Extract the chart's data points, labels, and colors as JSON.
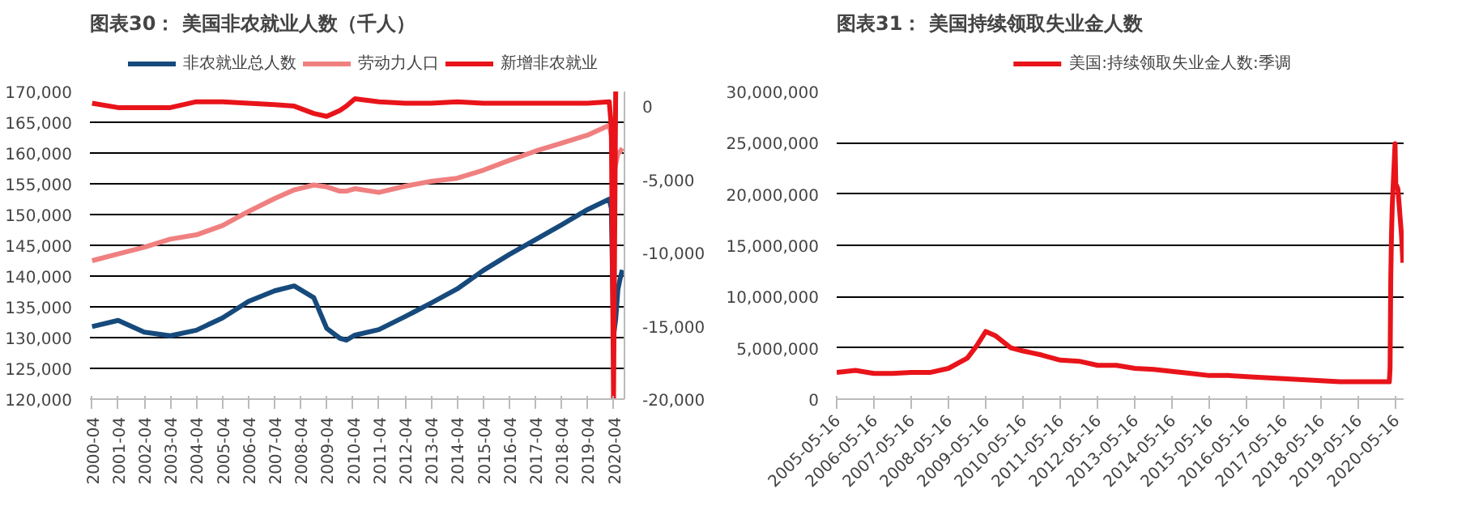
{
  "chart_data": [
    {
      "type": "line",
      "title": "图表30： 美国非农就业人数（千人）",
      "legend": "top",
      "grid": "y",
      "x": [
        "2000-04",
        "2001-04",
        "2002-04",
        "2003-04",
        "2004-04",
        "2005-04",
        "2006-04",
        "2007-04",
        "2008-01",
        "2008-10",
        "2009-04",
        "2009-10",
        "2010-01",
        "2010-05",
        "2011-04",
        "2012-04",
        "2013-04",
        "2014-04",
        "2015-04",
        "2016-04",
        "2017-04",
        "2018-04",
        "2019-04",
        "2020-02",
        "2020-03",
        "2020-04",
        "2020-05",
        "2020-06",
        "2020-07",
        "2020-08"
      ],
      "xlim": [
        "2000-03",
        "2020-09"
      ],
      "xticks": [
        "2000-04",
        "2001-04",
        "2002-04",
        "2003-04",
        "2004-04",
        "2005-04",
        "2006-04",
        "2007-04",
        "2008-04",
        "2009-04",
        "2010-04",
        "2011-04",
        "2012-04",
        "2013-04",
        "2014-04",
        "2015-04",
        "2016-04",
        "2017-04",
        "2018-04",
        "2019-04",
        "2020-04"
      ],
      "ylim": [
        120000,
        170000
      ],
      "yticks": [
        {
          "value": 120000,
          "label": "120,000"
        },
        {
          "value": 125000,
          "label": "125,000"
        },
        {
          "value": 130000,
          "label": "130,000"
        },
        {
          "value": 135000,
          "label": "135,000"
        },
        {
          "value": 140000,
          "label": "140,000"
        },
        {
          "value": 145000,
          "label": "145,000"
        },
        {
          "value": 150000,
          "label": "150,000"
        },
        {
          "value": 155000,
          "label": "155,000"
        },
        {
          "value": 160000,
          "label": "160,000"
        },
        {
          "value": 165000,
          "label": "165,000"
        },
        {
          "value": 170000,
          "label": "170,000"
        }
      ],
      "y2lim": [
        -20000,
        1000
      ],
      "y2ticks": [
        {
          "value": -20000,
          "label": "-20,000"
        },
        {
          "value": -15000,
          "label": "-15,000"
        },
        {
          "value": -10000,
          "label": "-10,000"
        },
        {
          "value": -5000,
          "label": "-5,000"
        },
        0
      ],
      "series": [
        {
          "name": "非农就业总人数",
          "color": "#174a7c",
          "values": [
            131800,
            132800,
            130900,
            130300,
            131200,
            133200,
            135900,
            137600,
            138400,
            136500,
            131500,
            129900,
            129600,
            130400,
            131300,
            133400,
            135600,
            137900,
            140900,
            143500,
            145900,
            148300,
            150800,
            152500,
            151000,
            130300,
            133000,
            137800,
            139500,
            141000
          ]
        },
        {
          "name": "劳动力人口",
          "color": "#f08080",
          "values": [
            142500,
            143600,
            144700,
            146000,
            146700,
            148200,
            150500,
            152600,
            154000,
            154800,
            154500,
            153800,
            153800,
            154200,
            153600,
            154600,
            155400,
            155900,
            157200,
            158800,
            160300,
            161600,
            162900,
            164500,
            162900,
            156500,
            158200,
            159900,
            160200,
            160800
          ]
        },
        {
          "name": "新增非农就业",
          "color": "#e8141a",
          "axis": "y2",
          "values": [
            200,
            -100,
            -100,
            -100,
            300,
            300,
            200,
            100,
            0,
            -500,
            -700,
            -300,
            0,
            500,
            300,
            200,
            200,
            300,
            200,
            200,
            200,
            200,
            200,
            300,
            -1400,
            -20000,
            1000,
            null,
            null,
            null
          ]
        }
      ]
    },
    {
      "type": "line",
      "title": "图表31： 美国持续领取失业金人数",
      "legend": "top",
      "grid": "y",
      "x": [
        "2005-05-16",
        "2005-11-16",
        "2006-05-16",
        "2006-11-16",
        "2007-05-16",
        "2007-11-16",
        "2008-05-16",
        "2008-11-16",
        "2009-02-16",
        "2009-05-16",
        "2009-08-16",
        "2010-01-16",
        "2010-05-16",
        "2010-11-16",
        "2011-05-16",
        "2011-11-16",
        "2012-05-16",
        "2012-11-16",
        "2013-05-16",
        "2013-11-16",
        "2014-05-16",
        "2014-11-16",
        "2015-05-16",
        "2015-11-16",
        "2016-05-16",
        "2016-11-16",
        "2017-05-16",
        "2017-11-16",
        "2018-05-16",
        "2018-11-16",
        "2019-05-16",
        "2019-11-16",
        "2020-03-14",
        "2020-03-21",
        "2020-03-28",
        "2020-04-04",
        "2020-04-11",
        "2020-05-09",
        "2020-05-16",
        "2020-06-06",
        "2020-07-11",
        "2020-07-25"
      ],
      "xlim": [
        "2005-05-16",
        "2020-08-01"
      ],
      "xticks": [
        "2005-05-16",
        "2006-05-16",
        "2007-05-16",
        "2008-05-16",
        "2009-05-16",
        "2010-05-16",
        "2011-05-16",
        "2012-05-16",
        "2013-05-16",
        "2014-05-16",
        "2015-05-16",
        "2016-05-16",
        "2017-05-16",
        "2018-05-16",
        "2019-05-16",
        "2020-05-16"
      ],
      "ylim": [
        0,
        30000000
      ],
      "yticks": [
        0,
        {
          "value": 5000000,
          "label": "5,000,000"
        },
        {
          "value": 10000000,
          "label": "10,000,000"
        },
        {
          "value": 15000000,
          "label": "15,000,000"
        },
        {
          "value": 20000000,
          "label": "20,000,000"
        },
        {
          "value": 25000000,
          "label": "25,000,000"
        },
        {
          "value": 30000000,
          "label": "30,000,000"
        }
      ],
      "series": [
        {
          "name": "美国:持续领取失业金人数:季调",
          "color": "#e8141a",
          "values": [
            2600000,
            2800000,
            2500000,
            2500000,
            2600000,
            2600000,
            3000000,
            4000000,
            5200000,
            6600000,
            6200000,
            5000000,
            4700000,
            4300000,
            3800000,
            3700000,
            3300000,
            3300000,
            3000000,
            2900000,
            2700000,
            2500000,
            2300000,
            2300000,
            2200000,
            2100000,
            2000000,
            1900000,
            1800000,
            1700000,
            1700000,
            1700000,
            1700000,
            3000000,
            11900000,
            16000000,
            18700000,
            24900000,
            21000000,
            20500000,
            16000000,
            13300000
          ]
        }
      ]
    }
  ]
}
